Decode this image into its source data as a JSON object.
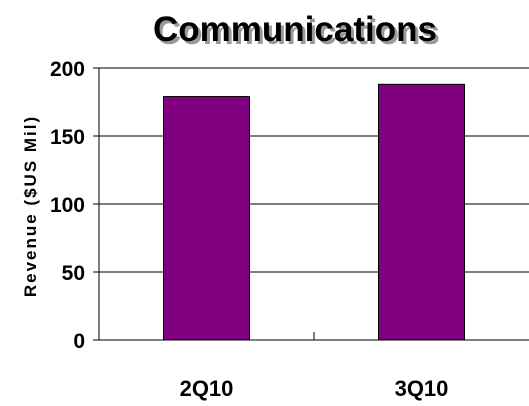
{
  "chart_data": {
    "type": "bar",
    "title": "Communications",
    "xlabel": "",
    "ylabel": "Revenue ($US Mil)",
    "categories": [
      "2Q10",
      "3Q10"
    ],
    "values": [
      179,
      188
    ],
    "ylim": [
      0,
      200
    ],
    "yticks": [
      "0",
      "50",
      "100",
      "150",
      "200"
    ],
    "grid": true,
    "bar_color": "#800080",
    "title_shadow_color": "#999999"
  }
}
